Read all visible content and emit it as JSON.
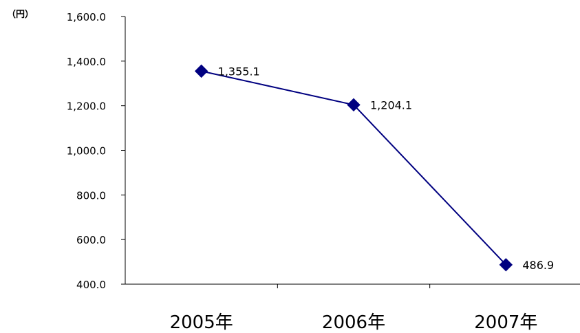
{
  "chart_data": {
    "type": "line",
    "unit_label": "（円）",
    "categories": [
      "2005年",
      "2006年",
      "2007年"
    ],
    "series": [
      {
        "values": [
          1355.1,
          1204.1,
          486.9
        ],
        "color": "#000080",
        "marker": "diamond"
      }
    ],
    "data_labels": [
      "1,355.1",
      "1,204.1",
      "486.9"
    ],
    "y_ticks": [
      "400.0",
      "600.0",
      "800.0",
      "1,000.0",
      "1,200.0",
      "1,400.0",
      "1,600.0"
    ],
    "ylim": [
      400,
      1600
    ],
    "y_step": 200,
    "grid": false,
    "legend": "none"
  }
}
